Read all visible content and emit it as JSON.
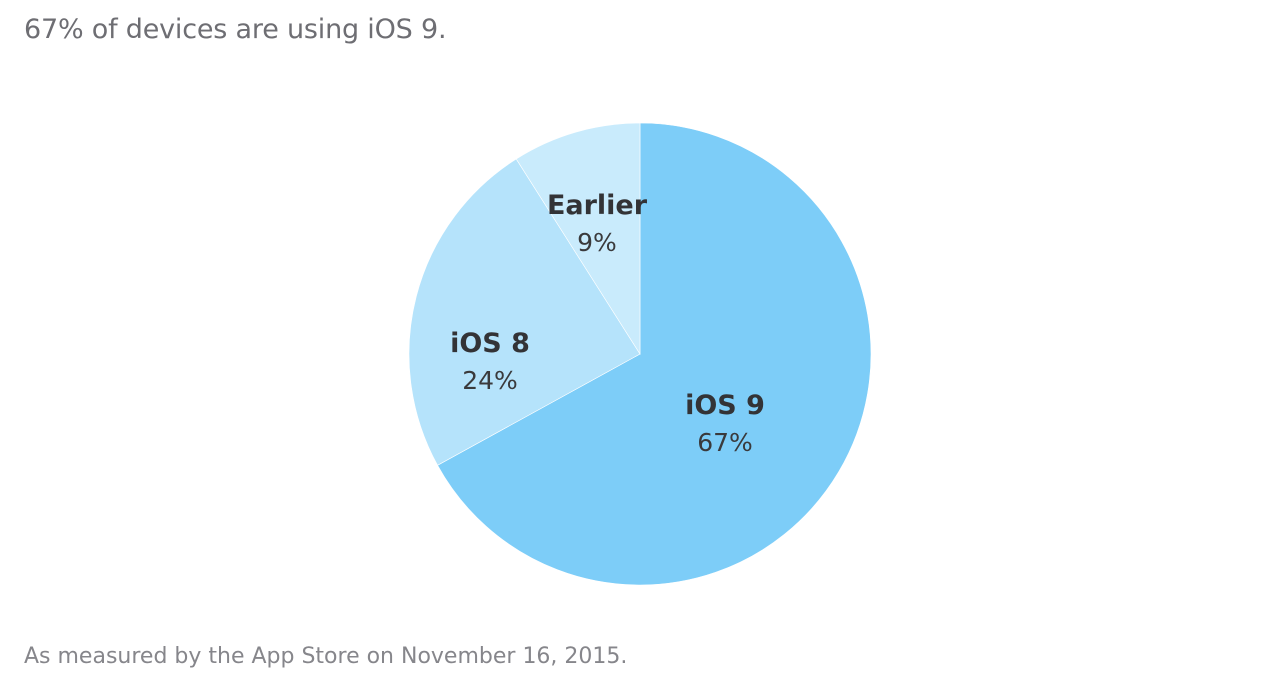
{
  "headline": "67% of devices are using iOS 9.",
  "footnote": "As measured by the App Store on November 16, 2015.",
  "chart_data": {
    "type": "pie",
    "title": "67% of devices are using iOS 9.",
    "start_angle_deg": 0,
    "direction": "clockwise",
    "slices": [
      {
        "label": "iOS 9",
        "value": 67,
        "value_label": "67%",
        "color": "#7dcdf8"
      },
      {
        "label": "iOS 8",
        "value": 24,
        "value_label": "24%",
        "color": "#b5e3fb"
      },
      {
        "label": "Earlier",
        "value": 9,
        "value_label": "9%",
        "color": "#c9ebfc"
      }
    ]
  }
}
